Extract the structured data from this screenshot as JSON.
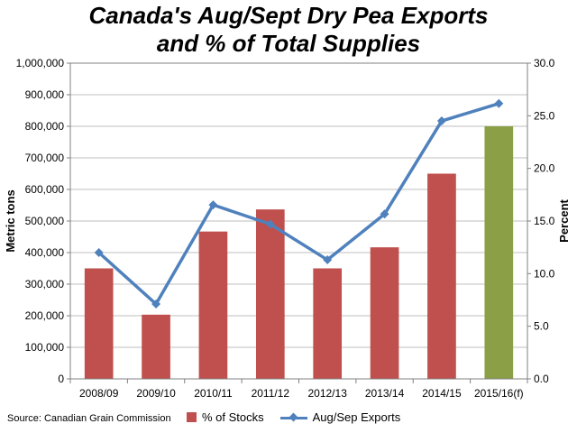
{
  "chart_data": {
    "type": "bar",
    "title": [
      "Canada's Aug/Sept Dry Pea Exports",
      "and % of Total Supplies"
    ],
    "categories": [
      "2008/09",
      "2009/10",
      "2010/11",
      "2011/12",
      "2012/13",
      "2013/14",
      "2014/15",
      "2015/16(f)"
    ],
    "series": [
      {
        "name": "% of Stocks",
        "type": "bar",
        "axis": "right",
        "values": [
          10.5,
          6.1,
          14.0,
          16.1,
          10.5,
          12.5,
          19.5,
          24.0
        ],
        "color": "#c0504d",
        "highlight_color": "#8ba046",
        "highlight_index": 7
      },
      {
        "name": "Aug/Sep Exports",
        "type": "line",
        "axis": "left",
        "values": [
          400000,
          237000,
          551000,
          490000,
          377000,
          522000,
          817000,
          872000
        ],
        "color": "#4f81bd"
      }
    ],
    "ylabel": "Metric tons",
    "y2label": "Percent",
    "ylim": [
      0,
      1000000
    ],
    "y2lim": [
      0,
      30
    ],
    "yticks": [
      "0",
      "100,000",
      "200,000",
      "300,000",
      "400,000",
      "500,000",
      "600,000",
      "700,000",
      "800,000",
      "900,000",
      "1,000,000"
    ],
    "y2ticks": [
      "0.0",
      "5.0",
      "10.0",
      "15.0",
      "20.0",
      "25.0",
      "30.0"
    ],
    "grid": true,
    "legend": "bottom",
    "source": "Source: Canadian Grain Commission"
  }
}
